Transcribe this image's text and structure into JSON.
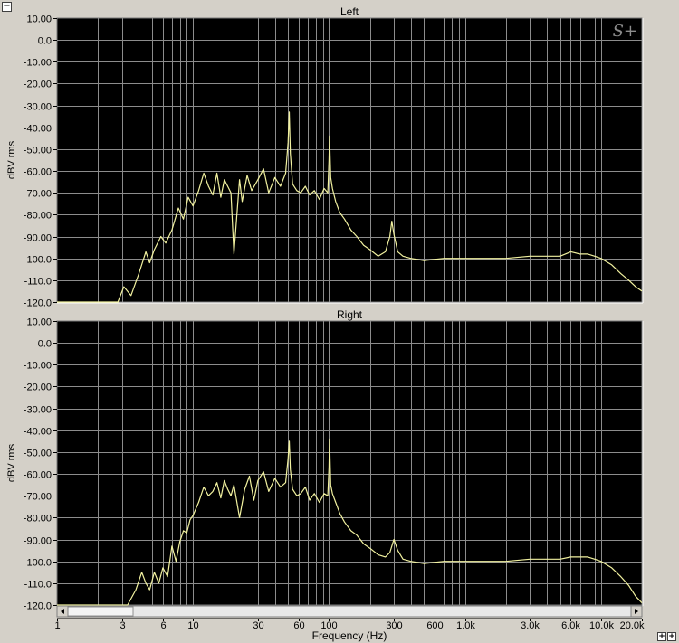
{
  "controls": {
    "collapse_label": "−",
    "zoom_in_label": "+",
    "zoom_out_label": "+"
  },
  "watermark": "S+",
  "colors": {
    "background": "#d4d0c8",
    "plot_bg": "#000000",
    "grid": "#8c8c8c",
    "trace": "#f2f2a0"
  },
  "chart_data": [
    {
      "type": "line",
      "title": "Left",
      "ylabel": "dBV rms",
      "xlabel": "Frequency (Hz)",
      "xscale": "log",
      "xlim": [
        1,
        20000
      ],
      "ylim": [
        -120,
        10
      ],
      "y_ticks": [
        "10.00",
        "0.0",
        "-10.00",
        "-20.00",
        "-30.00",
        "-40.00",
        "-50.00",
        "-60.00",
        "-70.00",
        "-80.00",
        "-90.00",
        "-100.0",
        "-110.0",
        "-120.0"
      ],
      "grid": true,
      "series": [
        {
          "x": [
            1,
            2.8,
            3.1,
            3.5,
            4.0,
            4.5,
            4.8,
            5.2,
            5.8,
            6.3,
            7.0,
            7.8,
            8.5,
            9.2,
            10,
            11,
            12,
            13,
            14,
            15,
            16,
            17,
            18,
            19,
            20,
            22,
            23,
            25,
            27,
            30,
            33,
            36,
            40,
            44,
            48,
            50,
            51,
            52,
            54,
            58,
            62,
            67,
            72,
            78,
            85,
            92,
            98,
            100,
            101,
            103,
            106,
            112,
            120,
            130,
            145,
            160,
            180,
            200,
            230,
            260,
            280,
            290,
            300,
            320,
            350,
            400,
            500,
            700,
            1000,
            1500,
            2000,
            3000,
            4000,
            5000,
            6000,
            7000,
            8000,
            9000,
            10000,
            12000,
            14000,
            16000,
            18000,
            20000
          ],
          "y": [
            -120,
            -120,
            -113,
            -117,
            -107,
            -97,
            -102,
            -96,
            -90,
            -93,
            -87,
            -77,
            -82,
            -72,
            -76,
            -69,
            -61,
            -67,
            -71,
            -61,
            -72,
            -64,
            -67,
            -70,
            -98,
            -64,
            -74,
            -62,
            -69,
            -64,
            -59,
            -70,
            -63,
            -67,
            -61,
            -47,
            -33,
            -52,
            -66,
            -69,
            -70,
            -67,
            -71,
            -69,
            -73,
            -68,
            -70,
            -55,
            -44,
            -63,
            -68,
            -74,
            -79,
            -82,
            -87,
            -90,
            -94,
            -96,
            -99,
            -97,
            -90,
            -83,
            -89,
            -97,
            -99,
            -100,
            -101,
            -100,
            -100,
            -100,
            -100,
            -99,
            -99,
            -99,
            -97,
            -98,
            -98,
            -99,
            -100,
            -103,
            -107,
            -110,
            -113,
            -115
          ]
        }
      ]
    },
    {
      "type": "line",
      "title": "Right",
      "ylabel": "dBV rms",
      "xlabel": "Frequency (Hz)",
      "xscale": "log",
      "xlim": [
        1,
        20000
      ],
      "ylim": [
        -120,
        10
      ],
      "y_ticks": [
        "10.00",
        "0.0",
        "-10.00",
        "-20.00",
        "-30.00",
        "-40.00",
        "-50.00",
        "-60.00",
        "-70.00",
        "-80.00",
        "-90.00",
        "-100.0",
        "-110.0",
        "-120.0"
      ],
      "x_ticks": [
        "1",
        "3",
        "6",
        "10",
        "30",
        "60",
        "100",
        "300",
        "600",
        "1.0k",
        "3.0k",
        "6.0k",
        "10.0k",
        "20.0k"
      ],
      "x_tick_values": [
        1,
        3,
        6,
        10,
        30,
        60,
        100,
        300,
        600,
        1000,
        3000,
        6000,
        10000,
        20000
      ],
      "grid": true,
      "series": [
        {
          "x": [
            1,
            3.3,
            3.8,
            4.2,
            4.5,
            4.8,
            5.2,
            5.6,
            6.0,
            6.5,
            7.0,
            7.5,
            8.0,
            8.5,
            9.0,
            9.5,
            10,
            11,
            12,
            13,
            14,
            15,
            16,
            17,
            18,
            19,
            20,
            22,
            24,
            26,
            28,
            30,
            33,
            36,
            40,
            44,
            48,
            50,
            51,
            52,
            54,
            58,
            62,
            67,
            72,
            78,
            85,
            92,
            98,
            100,
            101,
            103,
            106,
            112,
            120,
            130,
            145,
            160,
            180,
            200,
            230,
            260,
            280,
            290,
            300,
            320,
            350,
            400,
            500,
            700,
            1000,
            1500,
            2000,
            3000,
            4000,
            5000,
            6000,
            7000,
            8000,
            9000,
            10000,
            12000,
            14000,
            16000,
            18000,
            20000
          ],
          "y": [
            -120,
            -120,
            -113,
            -105,
            -110,
            -113,
            -105,
            -110,
            -103,
            -107,
            -93,
            -100,
            -91,
            -86,
            -87,
            -81,
            -79,
            -73,
            -66,
            -70,
            -68,
            -64,
            -71,
            -63,
            -67,
            -70,
            -65,
            -80,
            -67,
            -61,
            -72,
            -63,
            -59,
            -68,
            -62,
            -66,
            -64,
            -53,
            -45,
            -58,
            -67,
            -70,
            -69,
            -66,
            -72,
            -69,
            -73,
            -69,
            -70,
            -57,
            -44,
            -65,
            -69,
            -73,
            -78,
            -82,
            -86,
            -88,
            -92,
            -94,
            -97,
            -98,
            -96,
            -93,
            -90,
            -95,
            -99,
            -100,
            -101,
            -100,
            -100,
            -100,
            -100,
            -99,
            -99,
            -99,
            -98,
            -98,
            -98,
            -99,
            -100,
            -103,
            -107,
            -111,
            -116,
            -119
          ]
        }
      ]
    }
  ]
}
